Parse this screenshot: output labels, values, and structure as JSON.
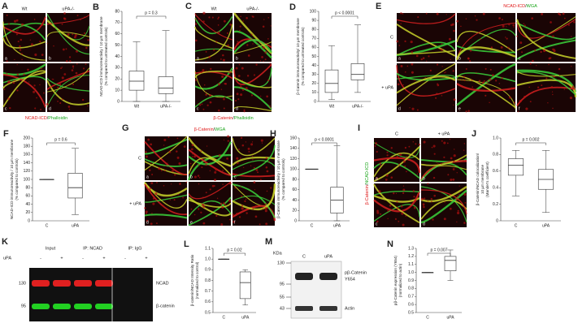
{
  "figure": {
    "A": {
      "letter": "A",
      "columns": [
        "Wt",
        "uPA-/-"
      ],
      "tiles": [
        "a",
        "b",
        "c",
        "d"
      ],
      "legend": [
        "NCAD-ICD",
        "/",
        "Phalloidin"
      ]
    },
    "C": {
      "letter": "C",
      "columns": [
        "Wt",
        "uPA-/-"
      ],
      "tiles": [
        "a",
        "b",
        "c",
        "d"
      ],
      "legend": [
        "β-Catenin",
        "/",
        "Phalloidin"
      ]
    },
    "E": {
      "letter": "E",
      "rows": [
        "C",
        "+ uPA"
      ],
      "tiles": [
        "a",
        "b",
        "c",
        "d",
        "e",
        "f"
      ],
      "legend": [
        "NCAD-ICD",
        "/",
        "WGA"
      ]
    },
    "G": {
      "letter": "G",
      "rows": [
        "C",
        "+ uPA"
      ],
      "tiles": [
        "a",
        "b",
        "c",
        "d",
        "e",
        "f"
      ],
      "legend": [
        "β-Catenin",
        "/",
        "WGA"
      ]
    },
    "I": {
      "letter": "I",
      "columns": [
        "C",
        "+ uPA"
      ],
      "tiles": [
        "a",
        "b",
        "c",
        "d"
      ],
      "legend": [
        "β-Catenin",
        "/",
        "NCAD-ICD"
      ]
    },
    "K": {
      "letter": "K",
      "treatment": "uPA",
      "signs": [
        "-",
        "+",
        "-",
        "+",
        "-",
        "+"
      ],
      "groups": [
        "Input",
        "IP: NCAD",
        "IP: IgG"
      ],
      "markers": [
        "130",
        "95"
      ],
      "bands": [
        "NCAD",
        "β-catenin"
      ]
    },
    "M": {
      "letter": "M",
      "unit": "KDa",
      "markers": [
        "130",
        "95",
        "55",
        "43"
      ],
      "lanes": [
        "C",
        "uPA"
      ],
      "bands": [
        "pβ-Catenin",
        "Y654",
        "Actin"
      ]
    }
  },
  "chart_data": [
    {
      "type": "box",
      "panel": "B",
      "ylabel": [
        "NCAD-ICD immunoreactivity / 10 µm membrane",
        "(% compared to untreated controls)"
      ],
      "categories": [
        "Wt",
        "uPA-/-"
      ],
      "stats": [
        [
          0,
          10,
          18,
          27,
          53
        ],
        [
          0,
          7,
          12,
          22,
          63
        ]
      ],
      "ylim": [
        0,
        80
      ],
      "yticks": [
        0,
        10,
        20,
        30,
        40,
        50,
        60,
        70,
        80
      ],
      "p_label": "p = 0.3"
    },
    {
      "type": "box",
      "panel": "D",
      "ylabel": [
        "β-Catenin immunoreactivity/ 10 µm membrane",
        "(% compared to untreated controls)"
      ],
      "categories": [
        "Wt",
        "uPA-/-"
      ],
      "stats": [
        [
          2,
          10,
          20,
          35,
          62
        ],
        [
          10,
          24,
          30,
          42,
          85
        ]
      ],
      "ylim": [
        0,
        100
      ],
      "yticks": [
        0,
        10,
        20,
        30,
        40,
        50,
        60,
        70,
        80,
        90,
        100
      ],
      "p_label": "p < 0.0001"
    },
    {
      "type": "box",
      "panel": "F",
      "ylabel": [
        "NCAD-ICD immunoreactivity / 10 µm membrane",
        "(% compared to controls)"
      ],
      "categories": [
        "C",
        "uPA"
      ],
      "stats": [
        [
          100,
          100,
          100,
          100,
          100
        ],
        [
          15,
          55,
          80,
          115,
          175
        ]
      ],
      "ylim": [
        0,
        200
      ],
      "yticks": [
        0,
        20,
        40,
        60,
        80,
        100,
        120,
        140,
        160,
        180,
        200
      ],
      "p_label": "p = 0.6"
    },
    {
      "type": "box",
      "panel": "H",
      "ylabel": [
        "β-Catenin immunoreactivity / 10 µm membrane",
        "(% compared to controls)"
      ],
      "categories": [
        "C",
        "uPA"
      ],
      "stats": [
        [
          100,
          100,
          100,
          100,
          100
        ],
        [
          0,
          15,
          40,
          65,
          145
        ]
      ],
      "ylim": [
        0,
        160
      ],
      "yticks": [
        0,
        20,
        40,
        60,
        80,
        100,
        120,
        140,
        160
      ],
      "p_label": "p < 0.0001"
    },
    {
      "type": "box",
      "panel": "J",
      "ylabel": [
        "β-Catenin/NCAD colocalization/",
        "10 µm membrane",
        "(Mander's coefficient)"
      ],
      "categories": [
        "C",
        "uPA"
      ],
      "stats": [
        [
          0.3,
          0.55,
          0.67,
          0.75,
          0.85
        ],
        [
          0.1,
          0.38,
          0.5,
          0.62,
          0.85
        ]
      ],
      "ylim": [
        0,
        1
      ],
      "yticks": [
        0,
        0.2,
        0.4,
        0.6,
        0.8,
        {
          "value": 1,
          "label": "1.0"
        }
      ],
      "p_label": "p = 0.002"
    },
    {
      "type": "box",
      "panel": "L",
      "ylabel": [
        "β-catenin/NCAD Intensity Ratio",
        "(normalized to control)"
      ],
      "categories": [
        "C",
        "uPA"
      ],
      "stats": [
        [
          1,
          1,
          1,
          1,
          1
        ],
        [
          0.57,
          0.63,
          0.78,
          0.88,
          0.9
        ]
      ],
      "ylim": [
        0.5,
        1.1
      ],
      "yticks": [
        0.5,
        0.6,
        0.7,
        0.8,
        0.9,
        {
          "value": 1,
          "label": "1.0"
        },
        1.1
      ],
      "p_label": "p = 0.02"
    },
    {
      "type": "box",
      "panel": "N",
      "ylabel": [
        "pβ-Catenin expression (Y654)",
        "(normalized to actin)"
      ],
      "categories": [
        "C",
        "uPA"
      ],
      "stats": [
        [
          1,
          1,
          1,
          1,
          1
        ],
        [
          0.9,
          1.02,
          1.15,
          1.2,
          1.28
        ]
      ],
      "ylim": [
        0.5,
        1.3
      ],
      "yticks": [
        0.5,
        0.6,
        0.7,
        0.8,
        0.9,
        {
          "value": 1,
          "label": "1.0"
        },
        1.1,
        1.2,
        1.3
      ],
      "p_label": "p = 0.007"
    }
  ]
}
